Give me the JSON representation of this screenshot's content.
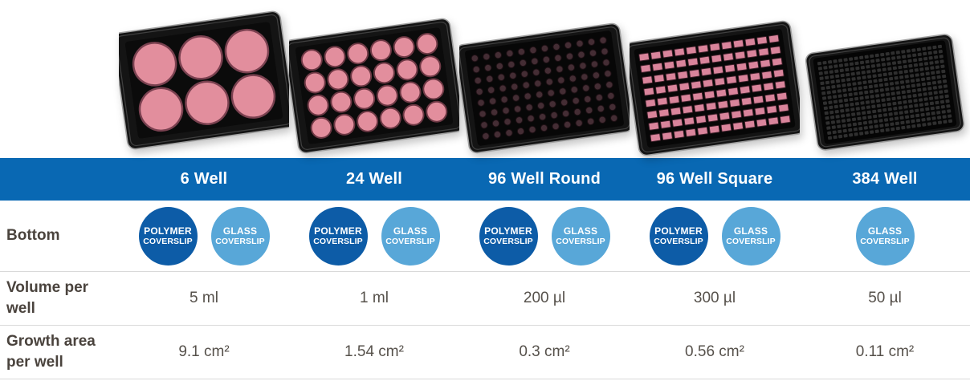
{
  "table": {
    "header_bg_color": "#0968b3",
    "divider_color": "#d9d9d9",
    "row_labels": {
      "bottom": "Bottom",
      "volume": "Volume per well",
      "growth": "Growth area per well"
    },
    "badges": {
      "polymer": {
        "line1": "POLYMER",
        "line2": "COVERSLIP",
        "color": "#0d5ca7"
      },
      "glass": {
        "line1": "GLASS",
        "line2": "COVERSLIP",
        "color": "#58a7d8"
      }
    },
    "columns": [
      {
        "label": "6 Well",
        "plate": {
          "type": "6-well",
          "grid": {
            "cols": 3,
            "rows": 2
          },
          "well_shape": "round",
          "well_color": "pink"
        },
        "bottom": [
          "polymer",
          "glass"
        ],
        "volume": "5 ml",
        "growth": "9.1 cm²"
      },
      {
        "label": "24 Well",
        "plate": {
          "type": "24-well",
          "grid": {
            "cols": 6,
            "rows": 4
          },
          "well_shape": "round",
          "well_color": "pink"
        },
        "bottom": [
          "polymer",
          "glass"
        ],
        "volume": "1 ml",
        "growth": "1.54 cm²"
      },
      {
        "label": "96 Well Round",
        "plate": {
          "type": "96-well-round",
          "grid": {
            "cols": 12,
            "rows": 8
          },
          "well_shape": "round",
          "well_color": "dark"
        },
        "bottom": [
          "polymer",
          "glass"
        ],
        "volume": "200 µl",
        "growth": "0.3 cm²"
      },
      {
        "label": "96 Well Square",
        "plate": {
          "type": "96-well-square",
          "grid": {
            "cols": 12,
            "rows": 8
          },
          "well_shape": "square",
          "well_color": "pink"
        },
        "bottom": [
          "polymer",
          "glass"
        ],
        "volume": "300 µl",
        "growth": "0.56 cm²"
      },
      {
        "label": "384 Well",
        "plate": {
          "type": "384-well",
          "grid": {
            "cols": 24,
            "rows": 16
          },
          "well_shape": "square",
          "well_color": "dark"
        },
        "bottom": [
          "glass"
        ],
        "volume": "50 µl",
        "growth": "0.11 cm²"
      }
    ]
  }
}
